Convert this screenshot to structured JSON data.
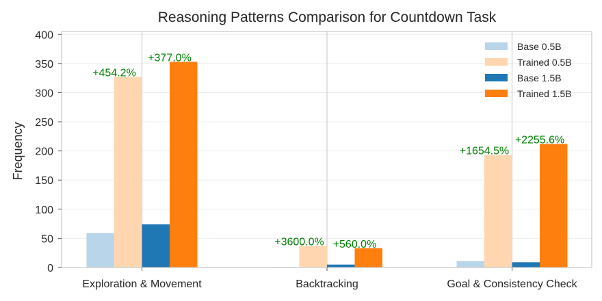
{
  "chart_data": {
    "type": "bar",
    "title": "Reasoning Patterns Comparison for Countdown Task",
    "xlabel": "",
    "ylabel": "Frequency",
    "categories": [
      "Exploration & Movement",
      "Backtracking",
      "Goal & Consistency Check"
    ],
    "series": [
      {
        "name": "Base 0.5B",
        "color": "#b9d5ea",
        "values": [
          59,
          1,
          11
        ]
      },
      {
        "name": "Trained 0.5B",
        "color": "#ffd6b0",
        "values": [
          327,
          37,
          193
        ]
      },
      {
        "name": "Base 1.5B",
        "color": "#1f77b4",
        "values": [
          74,
          5,
          9
        ]
      },
      {
        "name": "Trained 1.5B",
        "color": "#ff7f0e",
        "values": [
          353,
          33,
          212
        ]
      }
    ],
    "annotations": [
      {
        "category": 0,
        "series": 1,
        "text": "+454.2%"
      },
      {
        "category": 0,
        "series": 3,
        "text": "+377.0%"
      },
      {
        "category": 1,
        "series": 1,
        "text": "+3600.0%"
      },
      {
        "category": 1,
        "series": 3,
        "text": "+560.0%"
      },
      {
        "category": 2,
        "series": 1,
        "text": "+1654.5%"
      },
      {
        "category": 2,
        "series": 3,
        "text": "+2255.6%"
      }
    ],
    "ylim": [
      0,
      405
    ],
    "yticks": [
      0,
      50,
      100,
      150,
      200,
      250,
      300,
      350,
      400
    ],
    "grid": true,
    "legend_position": "top-right"
  }
}
